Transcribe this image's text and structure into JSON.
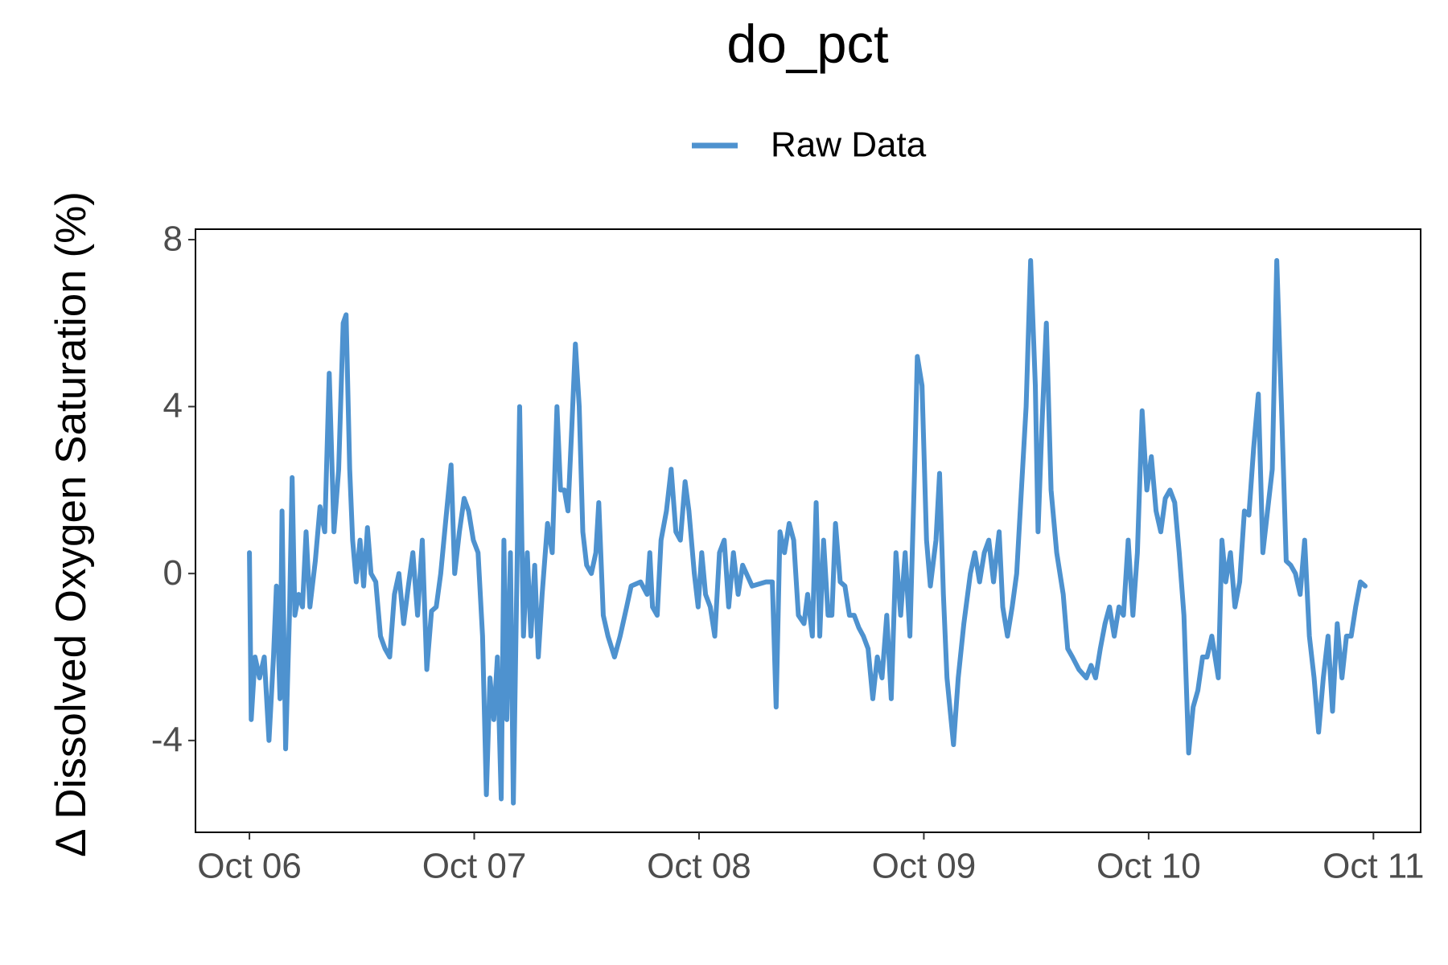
{
  "chart_data": {
    "type": "line",
    "title": "do_pct",
    "y_label": "Δ Dissolved Oxygen Saturation (%)",
    "legend": "top",
    "grid": false,
    "xlim": [
      -0.24,
      5.21
    ],
    "ylim": [
      -6.2,
      8.25
    ],
    "xticks": [
      {
        "value": 0,
        "label": "Oct 06"
      },
      {
        "value": 1,
        "label": "Oct 07"
      },
      {
        "value": 2,
        "label": "Oct 08"
      },
      {
        "value": 3,
        "label": "Oct 09"
      },
      {
        "value": 4,
        "label": "Oct 10"
      },
      {
        "value": 5,
        "label": "Oct 11"
      }
    ],
    "yticks": [
      -4,
      0,
      4,
      8
    ],
    "x": [
      0,
      0.008,
      0.025,
      0.045,
      0.066,
      0.087,
      0.107,
      0.12,
      0.136,
      0.145,
      0.161,
      0.178,
      0.19,
      0.202,
      0.219,
      0.236,
      0.252,
      0.269,
      0.293,
      0.314,
      0.335,
      0.355,
      0.376,
      0.397,
      0.417,
      0.43,
      0.446,
      0.459,
      0.475,
      0.492,
      0.508,
      0.525,
      0.541,
      0.562,
      0.583,
      0.603,
      0.624,
      0.645,
      0.665,
      0.686,
      0.707,
      0.727,
      0.748,
      0.769,
      0.789,
      0.81,
      0.831,
      0.851,
      0.872,
      0.897,
      0.913,
      0.934,
      0.955,
      0.975,
      0.996,
      1.017,
      1.037,
      1.054,
      1.07,
      1.087,
      1.103,
      1.12,
      1.132,
      1.145,
      1.161,
      1.174,
      1.19,
      1.202,
      1.219,
      1.236,
      1.252,
      1.269,
      1.285,
      1.302,
      1.326,
      1.347,
      1.368,
      1.384,
      1.401,
      1.417,
      1.434,
      1.45,
      1.467,
      1.483,
      1.5,
      1.521,
      1.541,
      1.554,
      1.574,
      1.595,
      1.624,
      1.649,
      1.678,
      1.698,
      1.74,
      1.769,
      1.781,
      1.793,
      1.814,
      1.831,
      1.855,
      1.876,
      1.897,
      1.917,
      1.938,
      1.955,
      1.979,
      1.996,
      2.012,
      2.029,
      2.05,
      2.07,
      2.091,
      2.112,
      2.132,
      2.153,
      2.174,
      2.194,
      2.236,
      2.298,
      2.326,
      2.343,
      2.36,
      2.38,
      2.401,
      2.421,
      2.442,
      2.467,
      2.483,
      2.504,
      2.521,
      2.537,
      2.554,
      2.574,
      2.591,
      2.607,
      2.628,
      2.649,
      2.669,
      2.69,
      2.711,
      2.731,
      2.752,
      2.773,
      2.793,
      2.814,
      2.835,
      2.855,
      2.876,
      2.897,
      2.917,
      2.938,
      2.959,
      2.971,
      2.992,
      3.012,
      3.029,
      3.054,
      3.07,
      3.087,
      3.103,
      3.132,
      3.153,
      3.178,
      3.207,
      3.227,
      3.248,
      3.269,
      3.289,
      3.31,
      3.335,
      3.351,
      3.372,
      3.393,
      3.413,
      3.434,
      3.455,
      3.475,
      3.496,
      3.508,
      3.525,
      3.545,
      3.566,
      3.591,
      3.62,
      3.64,
      3.661,
      3.69,
      3.723,
      3.744,
      3.764,
      3.785,
      3.806,
      3.826,
      3.847,
      3.868,
      3.888,
      3.909,
      3.93,
      3.95,
      3.971,
      3.992,
      4.012,
      4.033,
      4.054,
      4.074,
      4.095,
      4.116,
      4.136,
      4.157,
      4.178,
      4.198,
      4.219,
      4.24,
      4.26,
      4.281,
      4.31,
      4.326,
      4.343,
      4.364,
      4.384,
      4.405,
      4.426,
      4.446,
      4.467,
      4.488,
      4.508,
      4.529,
      4.55,
      4.57,
      4.591,
      4.612,
      4.632,
      4.653,
      4.674,
      4.694,
      4.715,
      4.736,
      4.756,
      4.777,
      4.798,
      4.818,
      4.839,
      4.86,
      4.88,
      4.901,
      4.921,
      4.942,
      4.963
    ],
    "series": [
      {
        "name": "Raw Data",
        "color": "#4e92cf",
        "values": [
          0.5,
          -3.5,
          -2,
          -2.5,
          -2,
          -4,
          -2,
          -0.3,
          -3,
          1.5,
          -4.2,
          -1,
          2.3,
          -1,
          -0.5,
          -0.8,
          1,
          -0.8,
          0.3,
          1.6,
          1,
          4.8,
          1,
          2.5,
          6,
          6.2,
          2.5,
          0.8,
          -0.2,
          0.8,
          -0.3,
          1.1,
          0,
          -0.2,
          -1.5,
          -1.8,
          -2,
          -0.5,
          0,
          -1.2,
          -0.3,
          0.5,
          -1,
          0.8,
          -2.3,
          -0.9,
          -0.8,
          0,
          1.2,
          2.6,
          0,
          1,
          1.8,
          1.5,
          0.8,
          0.5,
          -1.5,
          -5.3,
          -2.5,
          -3.5,
          -2,
          -5.4,
          0.8,
          -3.5,
          0.5,
          -5.5,
          0,
          4,
          -1.5,
          0.5,
          -1.5,
          0.2,
          -2,
          -0.5,
          1.2,
          0.5,
          4,
          2,
          2,
          1.5,
          3.5,
          5.5,
          4,
          1,
          0.2,
          0,
          0.5,
          1.7,
          -1,
          -1.5,
          -2,
          -1.5,
          -0.8,
          -0.3,
          -0.2,
          -0.5,
          0.5,
          -0.8,
          -1,
          0.8,
          1.5,
          2.5,
          1,
          0.8,
          2.2,
          1.5,
          0,
          -0.8,
          0.5,
          -0.5,
          -0.8,
          -1.5,
          0.5,
          0.8,
          -0.8,
          0.5,
          -0.5,
          0.2,
          -0.3,
          -0.2,
          -0.2,
          -3.2,
          1,
          0.5,
          1.2,
          0.8,
          -1,
          -1.2,
          -0.5,
          -1.5,
          1.7,
          -1.5,
          0.8,
          -1,
          -1,
          1.2,
          -0.2,
          -0.3,
          -1,
          -1,
          -1.3,
          -1.5,
          -1.8,
          -3,
          -2,
          -2.5,
          -1,
          -3,
          0.5,
          -1,
          0.5,
          -1.5,
          2.5,
          5.2,
          4.5,
          0.8,
          -0.3,
          0.8,
          2.4,
          -0.5,
          -2.5,
          -4.1,
          -2.5,
          -1.2,
          0,
          0.5,
          -0.2,
          0.5,
          0.8,
          -0.2,
          1,
          -0.8,
          -1.5,
          -0.8,
          0,
          2,
          4,
          7.5,
          4.5,
          1,
          3.5,
          6,
          2,
          0.5,
          -0.5,
          -1.8,
          -2,
          -2.3,
          -2.5,
          -2.2,
          -2.5,
          -1.8,
          -1.2,
          -0.8,
          -1.5,
          -0.8,
          -1,
          0.8,
          -1,
          0.5,
          3.9,
          2,
          2.8,
          1.5,
          1,
          1.8,
          2,
          1.7,
          0.5,
          -1,
          -4.3,
          -3.2,
          -2.8,
          -2,
          -2,
          -1.5,
          -2.5,
          0.8,
          -0.2,
          0.5,
          -0.8,
          -0.2,
          1.5,
          1.4,
          3,
          4.3,
          0.5,
          1.5,
          2.5,
          7.5,
          4,
          0.3,
          0.2,
          0,
          -0.5,
          0.8,
          -1.5,
          -2.5,
          -3.8,
          -2.5,
          -1.5,
          -3.3,
          -1.2,
          -2.5,
          -1.5,
          -1.5,
          -0.8,
          -0.2,
          -0.3
        ]
      }
    ]
  }
}
